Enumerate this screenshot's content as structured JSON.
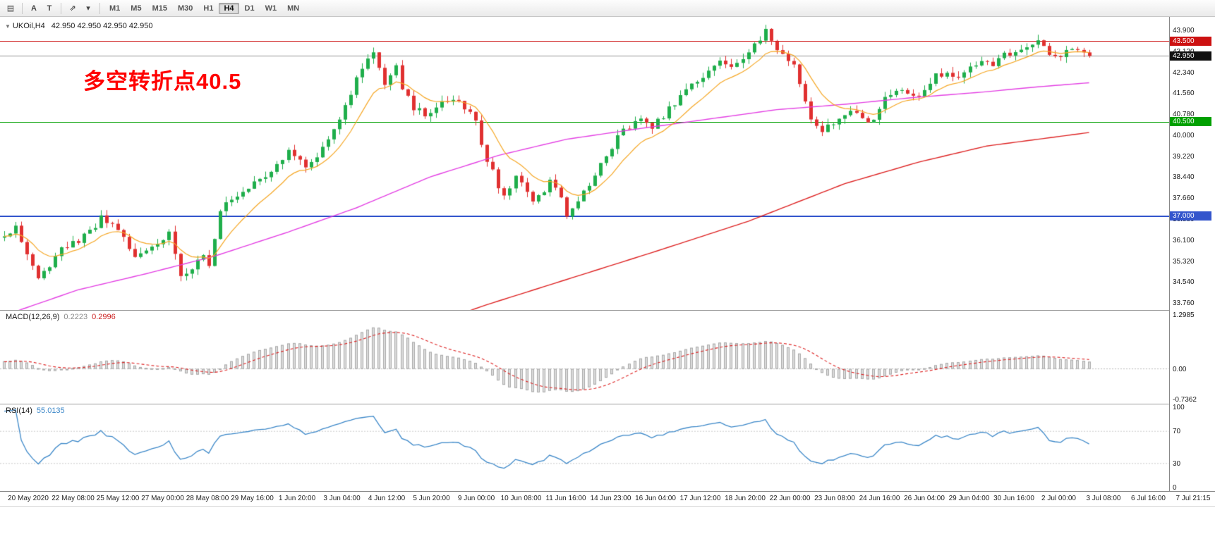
{
  "toolbar": {
    "tools": [
      {
        "glyph": "▤",
        "name": "chart-layout-icon"
      },
      {
        "glyph": "A",
        "name": "cursor-tool-button"
      },
      {
        "glyph": "T",
        "name": "text-tool-button"
      },
      {
        "glyph": "⇗",
        "name": "draw-tool-icon"
      },
      {
        "glyph": "▾",
        "name": "draw-tool-dropdown-caret"
      }
    ],
    "timeframes": [
      {
        "label": "M1",
        "active": false
      },
      {
        "label": "M5",
        "active": false
      },
      {
        "label": "M15",
        "active": false
      },
      {
        "label": "M30",
        "active": false
      },
      {
        "label": "H1",
        "active": false
      },
      {
        "label": "H4",
        "active": true
      },
      {
        "label": "D1",
        "active": false
      },
      {
        "label": "W1",
        "active": false
      },
      {
        "label": "MN",
        "active": false
      }
    ]
  },
  "chart": {
    "symbol": "UKOil,H4",
    "ohlc": "42.950 42.950 42.950 42.950",
    "annotation": {
      "text": "多空转折点40.5",
      "color": "#ff0000"
    },
    "up_color": "#1fae4b",
    "down_color": "#e03030",
    "ma_colors": {
      "fast": "#f5a623",
      "medium": "#e33fe3",
      "slow": "#dd2222"
    },
    "levels": [
      {
        "price": 43.5,
        "label": "43.500",
        "line_color": "#cc1111",
        "tag_color": "#cc1111",
        "thickness": 1,
        "name": "resistance-line"
      },
      {
        "price": 42.95,
        "label": "42.950",
        "line_color": "#8c8c8c",
        "tag_color": "#111111",
        "thickness": 1,
        "name": "current-price-line"
      },
      {
        "price": 40.5,
        "label": "40.500",
        "line_color": "#00a000",
        "tag_color": "#00a000",
        "thickness": 1,
        "name": "pivot-line"
      },
      {
        "price": 37.0,
        "label": "37.000",
        "line_color": "#3355cc",
        "tag_color": "#3355cc",
        "thickness": 2,
        "name": "support-line"
      }
    ],
    "y_axis": {
      "min": 33.5,
      "max": 44.4,
      "labels": [
        "43.900",
        "43.120",
        "42.340",
        "41.560",
        "40.780",
        "40.000",
        "39.220",
        "38.440",
        "37.660",
        "36.880",
        "36.100",
        "35.320",
        "34.540",
        "33.760"
      ]
    },
    "x_axis": {
      "labels": [
        "20 May 2020",
        "22 May 08:00",
        "25 May 12:00",
        "27 May 00:00",
        "28 May 08:00",
        "29 May 16:00",
        "1 Jun 20:00",
        "3 Jun 04:00",
        "4 Jun 12:00",
        "5 Jun 20:00",
        "9 Jun 00:00",
        "10 Jun 08:00",
        "11 Jun 16:00",
        "14 Jun 23:00",
        "16 Jun 04:00",
        "17 Jun 12:00",
        "18 Jun 20:00",
        "22 Jun 00:00",
        "23 Jun 08:00",
        "24 Jun 16:00",
        "26 Jun 04:00",
        "29 Jun 04:00",
        "30 Jun 16:00",
        "2 Jul 00:00",
        "3 Jul 08:00",
        "6 Jul 16:00",
        "7 Jul 21:15"
      ]
    }
  },
  "macd": {
    "name": "MACD(12,26,9)",
    "value_main": "0.2223",
    "value_signal": "0.2996",
    "scale": [
      {
        "v": 1.2985,
        "label": "1.2985"
      },
      {
        "v": 0,
        "label": "0.00"
      },
      {
        "v": -0.7362,
        "label": "-0.7362"
      }
    ]
  },
  "rsi": {
    "name": "RSI(14)",
    "value": "55.0135",
    "scale": [
      {
        "v": 100,
        "label": "100"
      },
      {
        "v": 70,
        "label": "70"
      },
      {
        "v": 30,
        "label": "30"
      },
      {
        "v": 0,
        "label": "0"
      }
    ],
    "levels": [
      70,
      30
    ]
  },
  "chart_data": {
    "type": "candlestick",
    "symbol": "UKOil",
    "timeframe": "H4",
    "title": "UKOil,H4",
    "current_ohlc": {
      "open": 42.95,
      "high": 42.95,
      "low": 42.95,
      "close": 42.95
    },
    "last_price": 42.95,
    "bars": 192,
    "time_start": "20 May 2020",
    "time_end": "7 Jul 21:15",
    "ylim": [
      33.5,
      44.4
    ],
    "horizontal_levels": [
      43.5,
      40.5,
      37.0
    ],
    "close_waypoints": [
      [
        0,
        36.2
      ],
      [
        2,
        36.55
      ],
      [
        4,
        35.6
      ],
      [
        6,
        34.6
      ],
      [
        8,
        35.2
      ],
      [
        10,
        35.75
      ],
      [
        13,
        36.1
      ],
      [
        15,
        36.45
      ],
      [
        17,
        36.9
      ],
      [
        19,
        36.6
      ],
      [
        21,
        36.2
      ],
      [
        23,
        35.45
      ],
      [
        25,
        35.7
      ],
      [
        27,
        36.0
      ],
      [
        29,
        36.35
      ],
      [
        31,
        34.85
      ],
      [
        33,
        35.1
      ],
      [
        35,
        35.45
      ],
      [
        36,
        35.2
      ],
      [
        38,
        37.3
      ],
      [
        40,
        37.6
      ],
      [
        42,
        37.95
      ],
      [
        44,
        38.3
      ],
      [
        46,
        38.55
      ],
      [
        48,
        38.9
      ],
      [
        50,
        39.35
      ],
      [
        52,
        39.0
      ],
      [
        53,
        38.7
      ],
      [
        55,
        39.3
      ],
      [
        57,
        39.95
      ],
      [
        59,
        40.7
      ],
      [
        61,
        41.6
      ],
      [
        63,
        42.5
      ],
      [
        64,
        42.85
      ],
      [
        65,
        43.05
      ],
      [
        66,
        42.55
      ],
      [
        67,
        42.0
      ],
      [
        68,
        42.35
      ],
      [
        69,
        42.6
      ],
      [
        70,
        41.8
      ],
      [
        72,
        41.05
      ],
      [
        74,
        40.75
      ],
      [
        76,
        41.0
      ],
      [
        78,
        41.3
      ],
      [
        80,
        41.15
      ],
      [
        81,
        40.9
      ],
      [
        83,
        40.6
      ],
      [
        84,
        39.6
      ],
      [
        86,
        38.6
      ],
      [
        87,
        38.0
      ],
      [
        88,
        37.7
      ],
      [
        90,
        38.45
      ],
      [
        92,
        37.9
      ],
      [
        93,
        37.5
      ],
      [
        95,
        37.95
      ],
      [
        96,
        38.25
      ],
      [
        98,
        37.6
      ],
      [
        99,
        37.1
      ],
      [
        100,
        37.3
      ],
      [
        102,
        37.85
      ],
      [
        104,
        38.5
      ],
      [
        105,
        38.95
      ],
      [
        107,
        39.5
      ],
      [
        108,
        39.95
      ],
      [
        110,
        40.35
      ],
      [
        112,
        40.6
      ],
      [
        114,
        40.3
      ],
      [
        116,
        40.75
      ],
      [
        118,
        41.2
      ],
      [
        120,
        41.8
      ],
      [
        122,
        42.05
      ],
      [
        124,
        42.4
      ],
      [
        126,
        42.8
      ],
      [
        128,
        42.5
      ],
      [
        130,
        42.9
      ],
      [
        132,
        43.3
      ],
      [
        133,
        43.6
      ],
      [
        134,
        43.85
      ],
      [
        135,
        43.5
      ],
      [
        136,
        43.15
      ],
      [
        138,
        42.8
      ],
      [
        139,
        42.55
      ],
      [
        140,
        41.9
      ],
      [
        141,
        41.2
      ],
      [
        142,
        40.7
      ],
      [
        144,
        40.15
      ],
      [
        146,
        40.45
      ],
      [
        148,
        40.7
      ],
      [
        150,
        40.95
      ],
      [
        151,
        40.7
      ],
      [
        152,
        40.35
      ],
      [
        154,
        41.0
      ],
      [
        155,
        41.45
      ],
      [
        157,
        41.65
      ],
      [
        159,
        41.5
      ],
      [
        161,
        41.35
      ],
      [
        163,
        41.9
      ],
      [
        164,
        42.2
      ],
      [
        166,
        42.35
      ],
      [
        168,
        42.15
      ],
      [
        170,
        42.55
      ],
      [
        172,
        42.75
      ],
      [
        174,
        42.65
      ],
      [
        176,
        43.0
      ],
      [
        178,
        43.15
      ],
      [
        180,
        43.35
      ],
      [
        182,
        43.45
      ],
      [
        184,
        43.1
      ],
      [
        185,
        42.85
      ],
      [
        187,
        43.05
      ],
      [
        189,
        43.2
      ],
      [
        191,
        42.95
      ]
    ],
    "ma_medium_waypoints": [
      [
        0,
        33.3
      ],
      [
        13,
        34.25
      ],
      [
        25,
        34.85
      ],
      [
        37,
        35.5
      ],
      [
        50,
        36.4
      ],
      [
        62,
        37.3
      ],
      [
        75,
        38.45
      ],
      [
        87,
        39.25
      ],
      [
        99,
        39.85
      ],
      [
        112,
        40.25
      ],
      [
        124,
        40.6
      ],
      [
        136,
        40.95
      ],
      [
        148,
        41.15
      ],
      [
        160,
        41.4
      ],
      [
        172,
        41.6
      ],
      [
        182,
        41.8
      ],
      [
        191,
        41.95
      ]
    ],
    "ma_slow_waypoints": [
      [
        55,
        31.8
      ],
      [
        70,
        32.6
      ],
      [
        85,
        33.7
      ],
      [
        100,
        34.7
      ],
      [
        115,
        35.7
      ],
      [
        131,
        36.8
      ],
      [
        148,
        38.2
      ],
      [
        161,
        39.0
      ],
      [
        173,
        39.6
      ],
      [
        191,
        40.1
      ]
    ],
    "indicators": [
      {
        "type": "MACD",
        "params": [
          12,
          26,
          9
        ],
        "last_values": [
          0.2223,
          0.2996
        ],
        "scale_max": 1.2985,
        "scale_min": -0.7362
      },
      {
        "type": "RSI",
        "params": [
          14
        ],
        "last_value": 55.0135,
        "range": [
          0,
          100
        ],
        "levels": [
          70,
          30
        ]
      }
    ]
  }
}
